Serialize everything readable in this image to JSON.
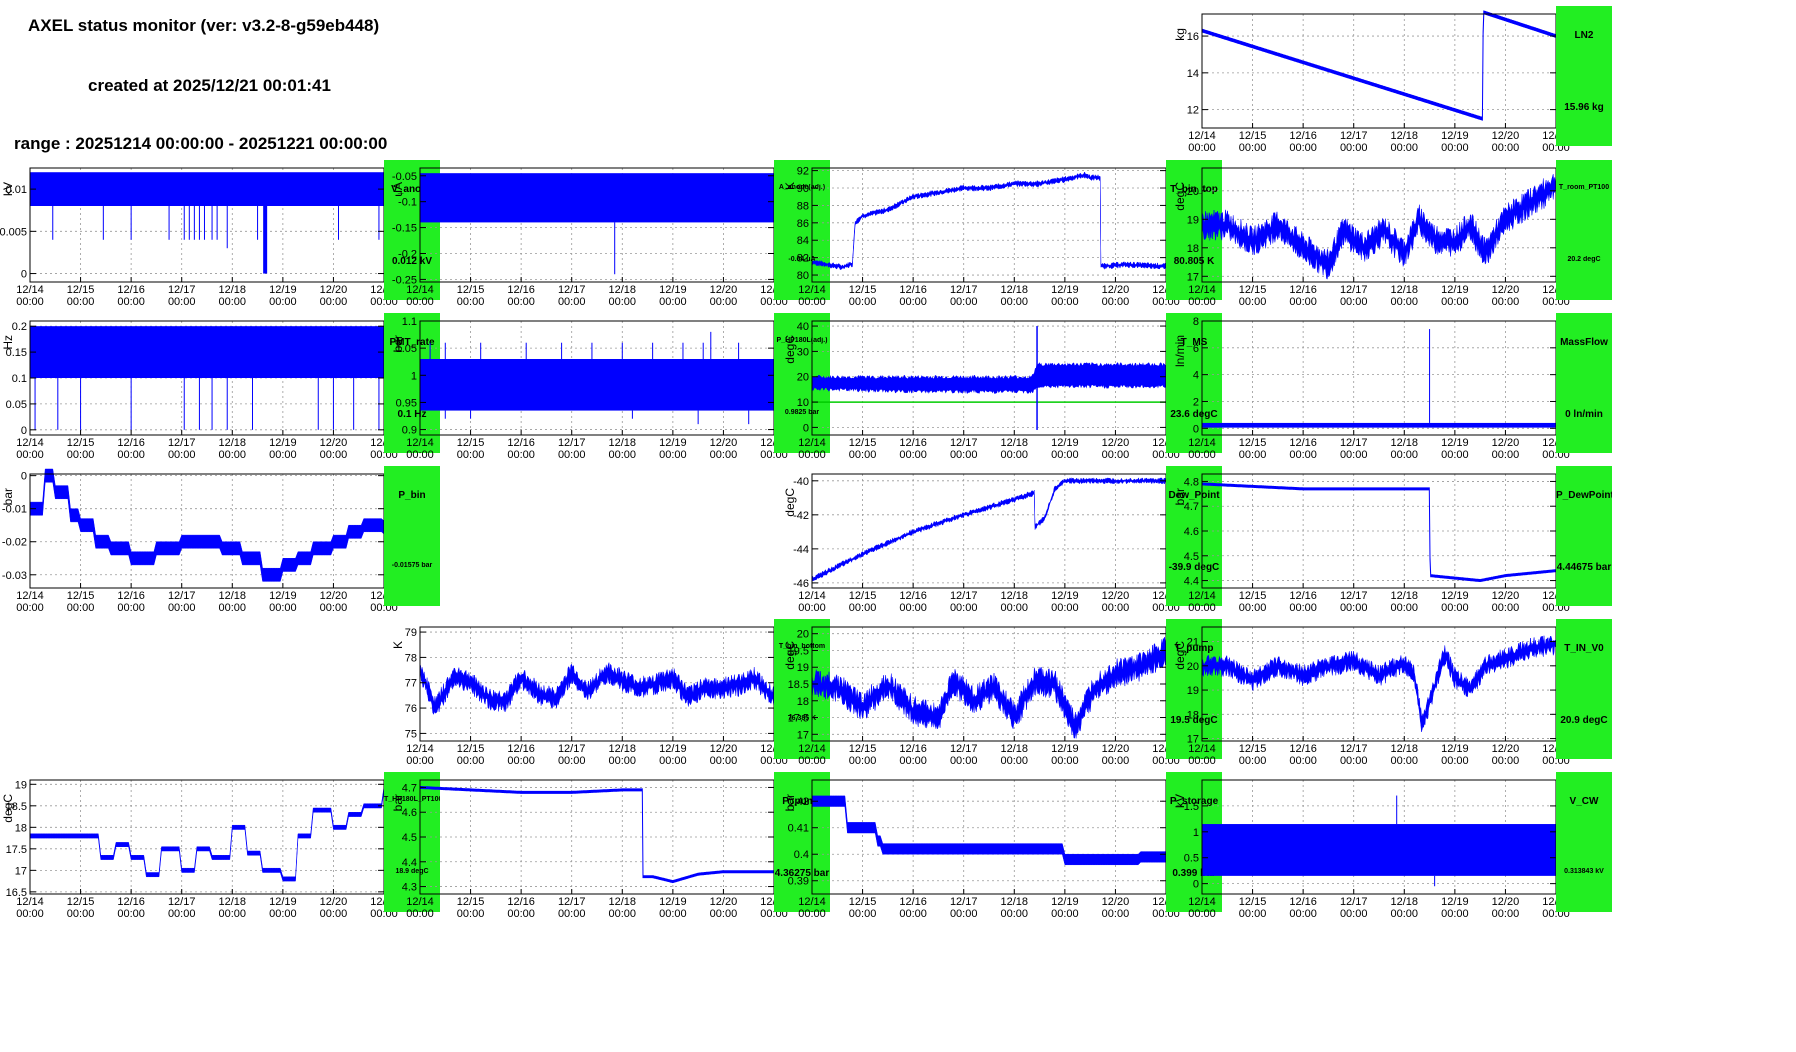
{
  "header": {
    "title": "AXEL status monitor (ver: v3.2-8-g59eb448)",
    "created": "created at 2025/12/21 00:01:41",
    "range": "range : 20251214 00:00:00 - 20251221 00:00:00"
  },
  "colors": {
    "trace": "#0000ff",
    "threshold": "#00cc00",
    "label_bg": "#22ee22"
  },
  "x_ticks": [
    "12/14",
    "12/15",
    "12/16",
    "12/17",
    "12/18",
    "12/19",
    "12/20",
    "12/21"
  ],
  "x_tick_time": "00:00",
  "chart_data": [
    {
      "id": "ln2",
      "type": "line",
      "name": "LN2",
      "value_label": "15.96 kg",
      "ylabel": "kg",
      "ylim": [
        11,
        17.2
      ],
      "yticks": [
        12,
        14,
        16
      ],
      "ytick_labels": [
        "12",
        "14",
        "16"
      ],
      "style": "thin",
      "x": [
        0,
        5.55,
        5.56,
        7
      ],
      "y": [
        16.3,
        11.5,
        17.3,
        16.0
      ],
      "band": 0.15
    },
    {
      "id": "v_anode",
      "type": "line",
      "name": "V_anode",
      "value_label": "0.012 kV",
      "ylabel": "kV",
      "ylim": [
        -0.001,
        0.0125
      ],
      "yticks": [
        0,
        0.005,
        0.01
      ],
      "ytick_labels": [
        "0",
        "0.005",
        "0.01"
      ],
      "style": "band",
      "band_range": [
        0.008,
        0.012
      ],
      "spikes": [
        [
          0.45,
          0.004
        ],
        [
          1.45,
          0.004
        ],
        [
          2.0,
          0.004
        ],
        [
          2.75,
          0.004
        ],
        [
          3.05,
          0.004
        ],
        [
          3.15,
          0.004
        ],
        [
          3.25,
          0.004
        ],
        [
          3.35,
          0.004
        ],
        [
          3.45,
          0.004
        ],
        [
          3.6,
          0.004
        ],
        [
          3.7,
          0.004
        ],
        [
          3.9,
          0.003
        ],
        [
          4.5,
          0.004
        ],
        [
          6.1,
          0.004
        ],
        [
          6.9,
          0.004
        ]
      ],
      "deep_spike": [
        4.65,
        0
      ]
    },
    {
      "id": "a_anode",
      "type": "line",
      "name": "A_anode(adj.)",
      "value_label": "-0.04 uA",
      "ylabel": "uA",
      "ylim": [
        -0.255,
        -0.035
      ],
      "yticks": [
        -0.25,
        -0.2,
        -0.15,
        -0.1,
        -0.05
      ],
      "ytick_labels": [
        "-0.25",
        "-0.2",
        "-0.15",
        "-0.1",
        "-0.05"
      ],
      "style": "band",
      "band_range": [
        -0.14,
        -0.045
      ],
      "spikes": [
        [
          3.85,
          -0.24
        ]
      ]
    },
    {
      "id": "t_bin_top",
      "type": "line",
      "name": "T_bin_top",
      "value_label": "80.805 K",
      "ylabel": "K",
      "ylim": [
        79.2,
        92.3
      ],
      "yticks": [
        80,
        82,
        84,
        86,
        88,
        90,
        92
      ],
      "ytick_labels": [
        "80",
        "82",
        "84",
        "86",
        "88",
        "90",
        "92"
      ],
      "style": "noisy",
      "x": [
        0,
        0.6,
        0.8,
        0.85,
        1.0,
        1.5,
        2.0,
        2.5,
        3.0,
        3.5,
        4.0,
        4.5,
        5.0,
        5.4,
        5.5,
        5.7,
        5.71,
        6.2,
        7
      ],
      "y": [
        81.5,
        80.9,
        81.3,
        86,
        86.8,
        87.5,
        89,
        89.5,
        90,
        90,
        90.5,
        90.5,
        91,
        91.5,
        91.2,
        91.2,
        81,
        81.2,
        81
      ],
      "band": 0.4
    },
    {
      "id": "t_room",
      "type": "line",
      "name": "T_room_PT100",
      "value_label": "20.2 degC",
      "ylabel": "degC",
      "ylim": [
        16.8,
        20.8
      ],
      "yticks": [
        17,
        18,
        19,
        20
      ],
      "ytick_labels": [
        "17",
        "18",
        "19",
        "20"
      ],
      "style": "noisy",
      "x": [
        0,
        0.5,
        1.0,
        1.5,
        2.0,
        2.5,
        2.8,
        3.2,
        3.6,
        4.0,
        4.3,
        4.6,
        5.0,
        5.3,
        5.6,
        6.0,
        6.5,
        7
      ],
      "y": [
        18.8,
        18.8,
        18.2,
        18.8,
        18.0,
        17.4,
        18.6,
        18.0,
        18.6,
        17.8,
        19.0,
        18.3,
        18.2,
        18.8,
        17.8,
        19.0,
        19.6,
        20.2
      ],
      "band": 0.6
    },
    {
      "id": "pmt_rate",
      "type": "line",
      "name": "PMT_rate",
      "value_label": "0.1 Hz",
      "ylabel": "Hz",
      "ylim": [
        -0.01,
        0.21
      ],
      "yticks": [
        0,
        0.05,
        0.1,
        0.15,
        0.2
      ],
      "ytick_labels": [
        "0",
        "0.05",
        "0.1",
        "0.15",
        "0.2"
      ],
      "style": "band",
      "band_range": [
        0.1,
        0.2
      ],
      "spikes": [
        [
          0.1,
          0
        ],
        [
          0.55,
          0
        ],
        [
          1.0,
          0
        ],
        [
          2.0,
          0
        ],
        [
          3.05,
          0
        ],
        [
          3.35,
          0
        ],
        [
          3.6,
          0
        ],
        [
          3.9,
          0
        ],
        [
          4.4,
          0
        ],
        [
          5.7,
          0
        ],
        [
          6.0,
          0
        ],
        [
          6.4,
          0
        ],
        [
          6.9,
          0
        ]
      ]
    },
    {
      "id": "p_hp",
      "type": "line",
      "name": "P_HP180L(adj.)",
      "value_label": "0.9825 bar",
      "ylabel": "bar",
      "ylim": [
        0.89,
        1.1
      ],
      "yticks": [
        0.9,
        0.95,
        1,
        1.05,
        1.1
      ],
      "ytick_labels": [
        "0.9",
        "0.95",
        "1",
        "1.05",
        "1.1"
      ],
      "style": "band",
      "band_range": [
        0.935,
        1.03
      ],
      "spikes": [
        [
          0.2,
          1.06
        ],
        [
          0.5,
          1.06
        ],
        [
          1.2,
          1.06
        ],
        [
          2.1,
          1.06
        ],
        [
          2.8,
          1.06
        ],
        [
          3.4,
          1.06
        ],
        [
          4.0,
          1.06
        ],
        [
          4.6,
          1.06
        ],
        [
          5.2,
          1.06
        ],
        [
          5.6,
          1.06
        ],
        [
          5.75,
          1.08
        ],
        [
          6.3,
          1.06
        ],
        [
          0.5,
          0.92
        ],
        [
          1.0,
          0.92
        ],
        [
          4.2,
          0.92
        ],
        [
          5.5,
          0.91
        ],
        [
          6.5,
          0.91
        ]
      ]
    },
    {
      "id": "t_ms",
      "type": "line",
      "name": "T_MS",
      "value_label": "23.6 degC",
      "ylabel": "degC",
      "ylim": [
        -3,
        42
      ],
      "yticks": [
        0,
        10,
        20,
        30,
        40
      ],
      "ytick_labels": [
        "0",
        "10",
        "20",
        "30",
        "40"
      ],
      "style": "band_series",
      "x": [
        0,
        2,
        4,
        4.35,
        4.45,
        5,
        6,
        7
      ],
      "y_lo": [
        15,
        14,
        14,
        14,
        16,
        16,
        16,
        16
      ],
      "y_hi": [
        20,
        20,
        20,
        20,
        25,
        25,
        25,
        25
      ],
      "threshold": 10,
      "spike": [
        4.45,
        40,
        -1
      ]
    },
    {
      "id": "massflow",
      "type": "line",
      "name": "MassFlow",
      "value_label": "0 ln/min",
      "ylabel": "ln/min",
      "ylim": [
        -0.5,
        8
      ],
      "yticks": [
        0,
        2,
        4,
        6,
        8
      ],
      "ytick_labels": [
        "0",
        "2",
        "4",
        "6",
        "8"
      ],
      "style": "band",
      "band_range": [
        0.05,
        0.4
      ],
      "spikes": [
        [
          4.5,
          7.4
        ]
      ]
    },
    {
      "id": "p_bin",
      "type": "line",
      "name": "P_bin",
      "value_label": "-0.01575 bar",
      "ylabel": "bar",
      "ylim": [
        -0.034,
        0.0005
      ],
      "yticks": [
        -0.03,
        -0.02,
        -0.01,
        0
      ],
      "ytick_labels": [
        "-0.03",
        "-0.02",
        "-0.01",
        "0"
      ],
      "style": "step",
      "x": [
        0,
        0.3,
        0.5,
        0.8,
        1.0,
        1.3,
        1.6,
        2.0,
        2.5,
        3.0,
        3.4,
        3.8,
        4.2,
        4.6,
        5.0,
        5.3,
        5.6,
        6.0,
        6.3,
        6.6,
        7
      ],
      "y": [
        -0.01,
        0,
        -0.005,
        -0.012,
        -0.015,
        -0.02,
        -0.022,
        -0.025,
        -0.022,
        -0.02,
        -0.02,
        -0.022,
        -0.025,
        -0.03,
        -0.027,
        -0.025,
        -0.022,
        -0.02,
        -0.017,
        -0.015,
        -0.0157
      ],
      "band": 0.004
    },
    {
      "id": "dew_point",
      "type": "line",
      "name": "Dew_Point",
      "value_label": "-39.9 degC",
      "ylabel": "degC",
      "ylim": [
        -46.3,
        -39.6
      ],
      "yticks": [
        -46,
        -44,
        -42,
        -40
      ],
      "ytick_labels": [
        "-46",
        "-44",
        "-42",
        "-40"
      ],
      "style": "noisy",
      "x": [
        0,
        1,
        2,
        3,
        4,
        4.4,
        4.41,
        4.6,
        4.8,
        5,
        6,
        7
      ],
      "y": [
        -45.8,
        -44.3,
        -43,
        -42,
        -41.1,
        -40.7,
        -42.7,
        -42.2,
        -40.5,
        -40,
        -40,
        -40
      ],
      "band": 0.2
    },
    {
      "id": "p_dewpoint",
      "type": "line",
      "name": "P_DewPoint",
      "value_label": "4.44675 bar",
      "ylabel": "bar",
      "ylim": [
        4.37,
        4.83
      ],
      "yticks": [
        4.4,
        4.5,
        4.6,
        4.7,
        4.8
      ],
      "ytick_labels": [
        "4.4",
        "4.5",
        "4.6",
        "4.7",
        "4.8"
      ],
      "style": "thin",
      "x": [
        0,
        1,
        2,
        3,
        4,
        4.5,
        4.51,
        5,
        5.5,
        6,
        7
      ],
      "y": [
        4.79,
        4.78,
        4.77,
        4.77,
        4.77,
        4.77,
        4.42,
        4.41,
        4.4,
        4.42,
        4.44
      ],
      "band": 0.008
    },
    {
      "id": "t_bin_bottom",
      "type": "line",
      "name": "T_bin_bottom",
      "value_label": "76.385 K",
      "ylabel": "K",
      "ylim": [
        74.7,
        79.2
      ],
      "yticks": [
        75,
        76,
        77,
        78,
        79
      ],
      "ytick_labels": [
        "75",
        "76",
        "77",
        "78",
        "79"
      ],
      "style": "noisy",
      "x": [
        0,
        0.3,
        0.7,
        1.0,
        1.4,
        1.7,
        2.0,
        2.4,
        2.7,
        3.0,
        3.3,
        3.7,
        4.0,
        4.3,
        4.6,
        5.0,
        5.3,
        5.6,
        6.0,
        6.3,
        6.6,
        7
      ],
      "y": [
        77.5,
        76,
        77.3,
        77,
        76.3,
        76.3,
        77.2,
        76.5,
        76.4,
        77.4,
        76.6,
        77.4,
        77.1,
        76.8,
        76.9,
        77.2,
        76.4,
        76.8,
        76.8,
        76.9,
        77.2,
        76.4
      ],
      "band": 0.5
    },
    {
      "id": "t_pump",
      "type": "line",
      "name": "T_pump",
      "value_label": "19.5 degC",
      "ylabel": "degC",
      "ylim": [
        16.8,
        20.2
      ],
      "yticks": [
        17,
        17.5,
        18,
        18.5,
        19,
        19.5,
        20
      ],
      "ytick_labels": [
        "17",
        "17.5",
        "18",
        "18.5",
        "19",
        "19.5",
        "20"
      ],
      "style": "noisy",
      "x": [
        0,
        0.5,
        1.0,
        1.5,
        2.0,
        2.5,
        2.8,
        3.2,
        3.6,
        4.0,
        4.4,
        4.8,
        5.2,
        5.6,
        6.0,
        6.5,
        7
      ],
      "y": [
        18.5,
        18.4,
        17.8,
        18.5,
        17.7,
        17.5,
        18.6,
        18.0,
        18.4,
        17.5,
        18.6,
        18.5,
        17.2,
        18.4,
        18.8,
        19.0,
        19.5
      ],
      "band": 0.5
    },
    {
      "id": "t_in_v0",
      "type": "line",
      "name": "T_IN_V0",
      "value_label": "20.9 degC",
      "ylabel": "degC",
      "ylim": [
        16.9,
        21.6
      ],
      "yticks": [
        17,
        18,
        19,
        20,
        21
      ],
      "ytick_labels": [
        "17",
        "18",
        "19",
        "20",
        "21"
      ],
      "style": "noisy",
      "x": [
        0,
        0.5,
        1.0,
        1.5,
        2.0,
        2.5,
        3.0,
        3.5,
        4.0,
        4.2,
        4.35,
        4.5,
        4.8,
        5.0,
        5.3,
        5.6,
        6.0,
        6.5,
        7
      ],
      "y": [
        20,
        20,
        19.4,
        20,
        19.6,
        20,
        20.2,
        19.6,
        20.1,
        19.6,
        17.5,
        18.5,
        20.5,
        19.5,
        19,
        20,
        20.3,
        20.7,
        20.9
      ],
      "band": 0.5
    },
    {
      "id": "t_hp",
      "type": "line",
      "name": "T_HP180L_PT100",
      "value_label": "18.9 degC",
      "ylabel": "degC",
      "ylim": [
        16.45,
        19.1
      ],
      "yticks": [
        16.5,
        17,
        17.5,
        18,
        18.5,
        19
      ],
      "ytick_labels": [
        "16.5",
        "17",
        "17.5",
        "18",
        "18.5",
        "19"
      ],
      "style": "step",
      "x": [
        0,
        0.9,
        1.4,
        1.7,
        2.0,
        2.3,
        2.6,
        3.0,
        3.3,
        3.6,
        4.0,
        4.3,
        4.6,
        5.0,
        5.3,
        5.6,
        6.0,
        6.3,
        6.6,
        7
      ],
      "y": [
        17.8,
        17.8,
        17.3,
        17.6,
        17.3,
        16.9,
        17.5,
        17.0,
        17.5,
        17.3,
        18.0,
        17.4,
        17.0,
        16.8,
        17.8,
        18.4,
        18.0,
        18.3,
        18.5,
        18.9
      ],
      "band": 0.1
    },
    {
      "id": "p_pump",
      "type": "line",
      "name": "P_pump",
      "value_label": "4.36275 bar",
      "ylabel": "bar",
      "ylim": [
        4.27,
        4.73
      ],
      "yticks": [
        4.3,
        4.4,
        4.5,
        4.6,
        4.7
      ],
      "ytick_labels": [
        "4.3",
        "4.4",
        "4.5",
        "4.6",
        "4.7"
      ],
      "style": "thin",
      "x": [
        0,
        1,
        2,
        3,
        4,
        4.4,
        4.41,
        4.6,
        5,
        5.5,
        6,
        7
      ],
      "y": [
        4.7,
        4.69,
        4.68,
        4.68,
        4.69,
        4.69,
        4.34,
        4.34,
        4.32,
        4.35,
        4.36,
        4.36
      ],
      "band": 0.008
    },
    {
      "id": "p_storage",
      "type": "line",
      "name": "P_storage",
      "value_label": "0.399 bar",
      "ylabel": "bar",
      "ylim": [
        0.385,
        0.428
      ],
      "yticks": [
        0.39,
        0.4,
        0.41,
        0.42
      ],
      "ytick_labels": [
        "0.39",
        "0.4",
        "0.41",
        "0.42"
      ],
      "style": "step",
      "x": [
        0,
        0.4,
        0.7,
        1.0,
        1.3,
        1.4,
        2.0,
        3.0,
        3.6,
        4.0,
        4.4,
        4.6,
        5.0,
        5.5,
        6.0,
        6.5,
        7
      ],
      "y": [
        0.42,
        0.42,
        0.41,
        0.41,
        0.405,
        0.402,
        0.402,
        0.402,
        0.402,
        0.402,
        0.402,
        0.402,
        0.398,
        0.398,
        0.398,
        0.399,
        0.399
      ],
      "band": 0.004
    },
    {
      "id": "v_cw",
      "type": "line",
      "name": "V_CW",
      "value_label": "0.313843 kV",
      "ylabel": "kV",
      "ylim": [
        -0.2,
        2
      ],
      "yticks": [
        0,
        0.5,
        1,
        1.5
      ],
      "ytick_labels": [
        "0",
        "0.5",
        "1",
        "1.5"
      ],
      "style": "band",
      "band_range": [
        0.15,
        1.15
      ],
      "spikes": [
        [
          3.85,
          1.7
        ],
        [
          4.6,
          -0.05
        ]
      ]
    }
  ]
}
